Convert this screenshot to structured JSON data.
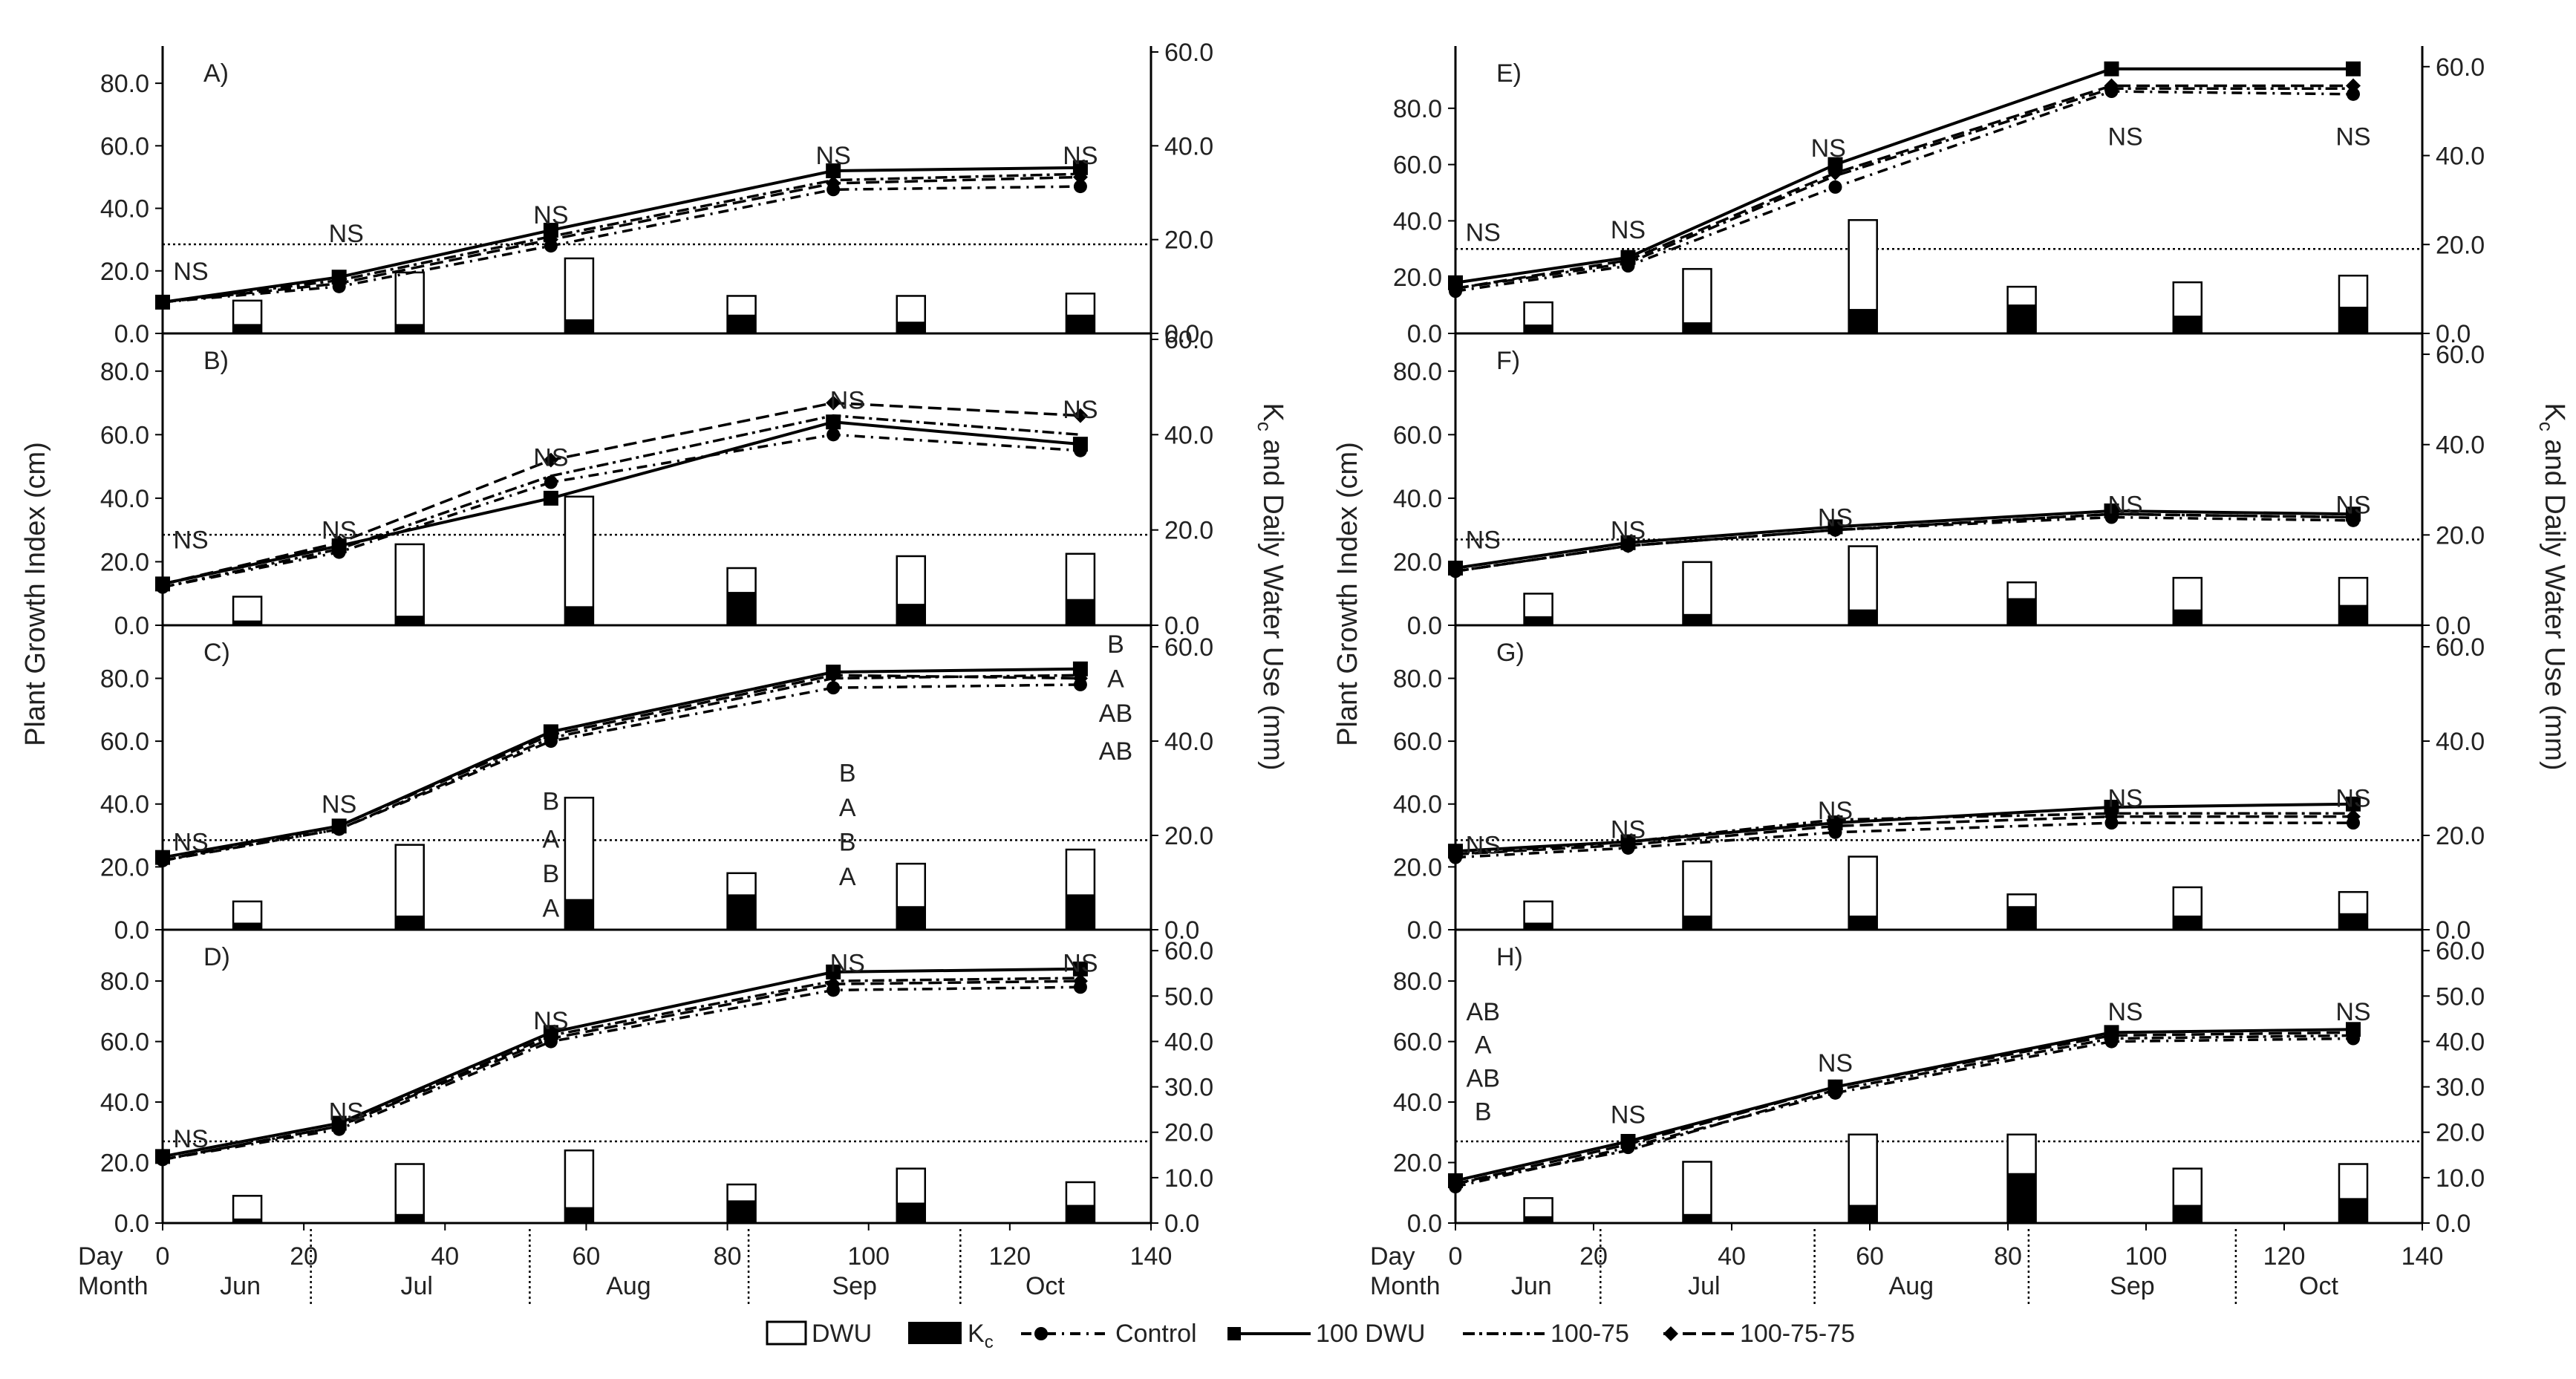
{
  "figure": {
    "y_label_left": "Plant Growth Index (cm)",
    "y_label_right_main": "K",
    "y_label_right_sub": "c",
    "y_label_right_rest": " and Daily Water Use (mm)",
    "x_row_day": "Day",
    "x_row_month": "Month",
    "months": [
      "Jun",
      "Jul",
      "Aug",
      "Sep",
      "Oct"
    ],
    "legend": {
      "dwu": "DWU",
      "kc_main": "K",
      "kc_sub": "c",
      "control": "Control",
      "dwu100": "100 DWU",
      "t10075": "100-75",
      "t1007575": "100-75-75"
    }
  },
  "chart_data": [
    {
      "type": "line+bar",
      "panel": "A)",
      "column": "left",
      "x": [
        0,
        25,
        55,
        95,
        130
      ],
      "ylim_left": [
        0,
        90
      ],
      "ylim_right": [
        0,
        60
      ],
      "left_ticks": [
        "0.0",
        "20.0",
        "40.0",
        "60.0",
        "80.0"
      ],
      "right_ticks": [
        "0.0",
        "20.0",
        "40.0",
        "60.0"
      ],
      "ref_line": 19,
      "series": [
        {
          "name": "Control",
          "values": [
            10,
            15,
            28,
            46,
            47
          ]
        },
        {
          "name": "100 DWU",
          "values": [
            10,
            18,
            33,
            52,
            53
          ]
        },
        {
          "name": "100-75",
          "values": [
            10,
            17,
            31,
            49,
            51
          ]
        },
        {
          "name": "100-75-75",
          "values": [
            10,
            16,
            30,
            48,
            50
          ]
        }
      ],
      "bars_x": [
        12,
        35,
        59,
        82,
        106,
        130
      ],
      "dwu": [
        7,
        13,
        16,
        8,
        8,
        8.5
      ],
      "kc": [
        2,
        2,
        3,
        4,
        2.5,
        4
      ],
      "labels": [
        {
          "x": 4,
          "y": 20,
          "text": "NS"
        },
        {
          "x": 26,
          "y": 32,
          "text": "NS"
        },
        {
          "x": 55,
          "y": 38,
          "text": "NS"
        },
        {
          "x": 95,
          "y": 57,
          "text": "NS"
        },
        {
          "x": 130,
          "y": 57,
          "text": "NS"
        }
      ]
    },
    {
      "type": "line+bar",
      "panel": "B)",
      "column": "left",
      "x": [
        0,
        25,
        55,
        95,
        130
      ],
      "ylim_left": [
        0,
        90
      ],
      "ylim_right": [
        0,
        60
      ],
      "left_ticks": [
        "0.0",
        "20.0",
        "40.0",
        "60.0",
        "80.0"
      ],
      "right_ticks": [
        "0.0",
        "20.0",
        "40.0",
        "60.0"
      ],
      "ref_line": 19,
      "series": [
        {
          "name": "Control",
          "values": [
            12,
            23,
            45,
            60,
            55
          ]
        },
        {
          "name": "100 DWU",
          "values": [
            13,
            25,
            40,
            64,
            57
          ]
        },
        {
          "name": "100-75",
          "values": [
            12,
            24,
            47,
            66,
            60
          ]
        },
        {
          "name": "100-75-75",
          "values": [
            13,
            26,
            52,
            70,
            66
          ]
        }
      ],
      "bars_x": [
        12,
        35,
        59,
        82,
        106,
        130
      ],
      "dwu": [
        6,
        17,
        27,
        12,
        14.5,
        15
      ],
      "kc": [
        1,
        2,
        4,
        7,
        4.5,
        5.5
      ],
      "labels": [
        {
          "x": 4,
          "y": 27,
          "text": "NS"
        },
        {
          "x": 25,
          "y": 30,
          "text": "NS"
        },
        {
          "x": 55,
          "y": 53,
          "text": "NS"
        },
        {
          "x": 97,
          "y": 71,
          "text": "NS"
        },
        {
          "x": 130,
          "y": 68,
          "text": "NS"
        }
      ]
    },
    {
      "type": "line+bar",
      "panel": "C)",
      "column": "left",
      "x": [
        0,
        25,
        55,
        95,
        130
      ],
      "ylim_left": [
        0,
        95
      ],
      "ylim_right": [
        0,
        63.3
      ],
      "left_ticks": [
        "0.0",
        "20.0",
        "40.0",
        "60.0",
        "80.0"
      ],
      "right_ticks": [
        "0.0",
        "20.0",
        "40.0",
        "60.0"
      ],
      "ref_line": 19,
      "series": [
        {
          "name": "Control",
          "values": [
            22,
            32,
            60,
            77,
            78
          ]
        },
        {
          "name": "100 DWU",
          "values": [
            23,
            33,
            63,
            82,
            83
          ]
        },
        {
          "name": "100-75",
          "values": [
            22,
            32,
            61,
            80,
            81
          ]
        },
        {
          "name": "100-75-75",
          "values": [
            22,
            33,
            62,
            81,
            80
          ]
        }
      ],
      "bars_x": [
        12,
        35,
        59,
        82,
        106,
        130
      ],
      "dwu": [
        6,
        18,
        28,
        12,
        14,
        17
      ],
      "kc": [
        1.5,
        3,
        6.5,
        7.5,
        5,
        7.5
      ],
      "labels": [
        {
          "x": 4,
          "y": 28,
          "text": "NS"
        },
        {
          "x": 25,
          "y": 40,
          "text": "NS"
        },
        {
          "x": 55,
          "y": 41,
          "text": "B"
        },
        {
          "x": 55,
          "y": 29,
          "text": "A"
        },
        {
          "x": 55,
          "y": 18,
          "text": "B"
        },
        {
          "x": 55,
          "y": 7,
          "text": "A"
        },
        {
          "x": 97,
          "y": 50,
          "text": "B"
        },
        {
          "x": 97,
          "y": 39,
          "text": "A"
        },
        {
          "x": 97,
          "y": 28,
          "text": "B"
        },
        {
          "x": 97,
          "y": 17,
          "text": "A"
        },
        {
          "x": 135,
          "y": 91,
          "text": "B"
        },
        {
          "x": 135,
          "y": 80,
          "text": "A"
        },
        {
          "x": 135,
          "y": 69,
          "text": "AB"
        },
        {
          "x": 135,
          "y": 57,
          "text": "AB"
        }
      ]
    },
    {
      "type": "line+bar",
      "panel": "D)",
      "column": "left",
      "x": [
        0,
        25,
        55,
        95,
        130
      ],
      "ylim_left": [
        0,
        95
      ],
      "ylim_right": [
        0,
        63.3
      ],
      "left_ticks": [
        "0.0",
        "20.0",
        "40.0",
        "60.0",
        "80.0"
      ],
      "right_ticks": [
        "0.0",
        "10.0",
        "20.0",
        "30.0",
        "40.0",
        "50.0",
        "60.0"
      ],
      "ref_line": 18,
      "series": [
        {
          "name": "Control",
          "values": [
            21,
            31,
            60,
            77,
            78
          ]
        },
        {
          "name": "100 DWU",
          "values": [
            22,
            33,
            63,
            83,
            84
          ]
        },
        {
          "name": "100-75",
          "values": [
            21,
            32,
            62,
            80,
            81
          ]
        },
        {
          "name": "100-75-75",
          "values": [
            21,
            32,
            61,
            79,
            80
          ]
        }
      ],
      "bars_x": [
        12,
        35,
        59,
        82,
        106,
        130
      ],
      "dwu": [
        6,
        13,
        16,
        8.5,
        12,
        9
      ],
      "kc": [
        1,
        2,
        3.5,
        5,
        4.5,
        4
      ],
      "labels": [
        {
          "x": 4,
          "y": 28,
          "text": "NS"
        },
        {
          "x": 26,
          "y": 37,
          "text": "NS"
        },
        {
          "x": 55,
          "y": 67,
          "text": "NS"
        },
        {
          "x": 97,
          "y": 86,
          "text": "NS"
        },
        {
          "x": 130,
          "y": 86,
          "text": "NS"
        }
      ]
    },
    {
      "type": "line+bar",
      "panel": "E)",
      "column": "right",
      "x": [
        0,
        25,
        55,
        95,
        130
      ],
      "ylim_left": [
        0,
        100
      ],
      "ylim_right": [
        0,
        63.3
      ],
      "left_ticks": [
        "0.0",
        "20.0",
        "40.0",
        "60.0",
        "80.0"
      ],
      "right_ticks": [
        "0.0",
        "20.0",
        "40.0",
        "60.0"
      ],
      "ref_line": 19,
      "series": [
        {
          "name": "Control",
          "values": [
            15,
            24,
            52,
            86,
            85
          ]
        },
        {
          "name": "100 DWU",
          "values": [
            18,
            27,
            60,
            94,
            94
          ]
        },
        {
          "name": "100-75",
          "values": [
            16,
            25,
            56,
            87,
            87
          ]
        },
        {
          "name": "100-75-75",
          "values": [
            16,
            26,
            57,
            88,
            88
          ]
        }
      ],
      "bars_x": [
        12,
        35,
        59,
        82,
        106,
        130
      ],
      "dwu": [
        7,
        14.5,
        25.5,
        10.5,
        11.5,
        13
      ],
      "kc": [
        2,
        2.5,
        5.5,
        6.5,
        4,
        6
      ],
      "labels": [
        {
          "x": 4,
          "y": 36,
          "text": "NS"
        },
        {
          "x": 25,
          "y": 37,
          "text": "NS"
        },
        {
          "x": 54,
          "y": 66,
          "text": "NS"
        },
        {
          "x": 97,
          "y": 70,
          "text": "NS"
        },
        {
          "x": 130,
          "y": 70,
          "text": "NS"
        }
      ]
    },
    {
      "type": "line+bar",
      "panel": "F)",
      "column": "right",
      "x": [
        0,
        25,
        55,
        95,
        130
      ],
      "ylim_left": [
        0,
        90
      ],
      "ylim_right": [
        0,
        63.3
      ],
      "left_ticks": [
        "0.0",
        "20.0",
        "40.0",
        "60.0",
        "80.0"
      ],
      "right_ticks": [
        "0.0",
        "20.0",
        "40.0",
        "60.0"
      ],
      "ref_line": 19,
      "series": [
        {
          "name": "Control",
          "values": [
            17,
            25,
            30,
            34,
            33
          ]
        },
        {
          "name": "100 DWU",
          "values": [
            18,
            26,
            31,
            36,
            35
          ]
        },
        {
          "name": "100-75",
          "values": [
            17,
            25,
            30,
            35,
            34
          ]
        },
        {
          "name": "100-75-75",
          "values": [
            17,
            25,
            30,
            35,
            34
          ]
        }
      ],
      "bars_x": [
        12,
        35,
        59,
        82,
        106,
        130
      ],
      "dwu": [
        7,
        14,
        17.5,
        9.5,
        10.5,
        10.5
      ],
      "kc": [
        2,
        2.5,
        3.5,
        6,
        3.5,
        4.5
      ],
      "labels": [
        {
          "x": 4,
          "y": 27,
          "text": "NS"
        },
        {
          "x": 25,
          "y": 30,
          "text": "NS"
        },
        {
          "x": 55,
          "y": 34,
          "text": "NS"
        },
        {
          "x": 97,
          "y": 38,
          "text": "NS"
        },
        {
          "x": 130,
          "y": 38,
          "text": "NS"
        }
      ]
    },
    {
      "type": "line+bar",
      "panel": "G)",
      "column": "right",
      "x": [
        0,
        25,
        55,
        95,
        130
      ],
      "ylim_left": [
        0,
        95
      ],
      "ylim_right": [
        0,
        63.3
      ],
      "left_ticks": [
        "0.0",
        "20.0",
        "40.0",
        "60.0",
        "80.0"
      ],
      "right_ticks": [
        "0.0",
        "20.0",
        "40.0",
        "60.0"
      ],
      "ref_line": 19,
      "series": [
        {
          "name": "Control",
          "values": [
            23,
            26,
            31,
            34,
            34
          ]
        },
        {
          "name": "100 DWU",
          "values": [
            25,
            28,
            34,
            39,
            40
          ]
        },
        {
          "name": "100-75",
          "values": [
            24,
            28,
            35,
            37,
            37
          ]
        },
        {
          "name": "100-75-75",
          "values": [
            24,
            27,
            33,
            36,
            36
          ]
        }
      ],
      "bars_x": [
        12,
        35,
        59,
        82,
        106,
        130
      ],
      "dwu": [
        6,
        14.5,
        15.5,
        7.5,
        9,
        8
      ],
      "kc": [
        1.5,
        3,
        3,
        5,
        3,
        3.5
      ],
      "labels": [
        {
          "x": 4,
          "y": 27,
          "text": "NS"
        },
        {
          "x": 25,
          "y": 32,
          "text": "NS"
        },
        {
          "x": 55,
          "y": 38,
          "text": "NS"
        },
        {
          "x": 97,
          "y": 42,
          "text": "NS"
        },
        {
          "x": 130,
          "y": 42,
          "text": "NS"
        }
      ]
    },
    {
      "type": "line+bar",
      "panel": "H)",
      "column": "right",
      "x": [
        0,
        25,
        55,
        95,
        130
      ],
      "ylim_left": [
        0,
        95
      ],
      "ylim_right": [
        0,
        63.3
      ],
      "left_ticks": [
        "0.0",
        "20.0",
        "40.0",
        "60.0",
        "80.0"
      ],
      "right_ticks": [
        "0.0",
        "10.0",
        "20.0",
        "30.0",
        "40.0",
        "50.0",
        "60.0"
      ],
      "ref_line": 18,
      "series": [
        {
          "name": "Control",
          "values": [
            12,
            25,
            43,
            60,
            61
          ]
        },
        {
          "name": "100 DWU",
          "values": [
            14,
            27,
            45,
            63,
            64
          ]
        },
        {
          "name": "100-75",
          "values": [
            13,
            24,
            44,
            61,
            62
          ]
        },
        {
          "name": "100-75-75",
          "values": [
            13,
            26,
            45,
            62,
            63
          ]
        }
      ],
      "bars_x": [
        12,
        35,
        59,
        82,
        106,
        130
      ],
      "dwu": [
        5.5,
        13.5,
        19.5,
        19.5,
        12,
        13
      ],
      "kc": [
        1.5,
        2,
        4,
        11,
        4,
        5.5
      ],
      "labels": [
        {
          "x": 4,
          "y": 70,
          "text": "AB"
        },
        {
          "x": 4,
          "y": 59,
          "text": "A"
        },
        {
          "x": 4,
          "y": 48,
          "text": "AB"
        },
        {
          "x": 4,
          "y": 37,
          "text": "B"
        },
        {
          "x": 25,
          "y": 36,
          "text": "NS"
        },
        {
          "x": 55,
          "y": 53,
          "text": "NS"
        },
        {
          "x": 97,
          "y": 70,
          "text": "NS"
        },
        {
          "x": 130,
          "y": 70,
          "text": "NS"
        }
      ]
    }
  ]
}
